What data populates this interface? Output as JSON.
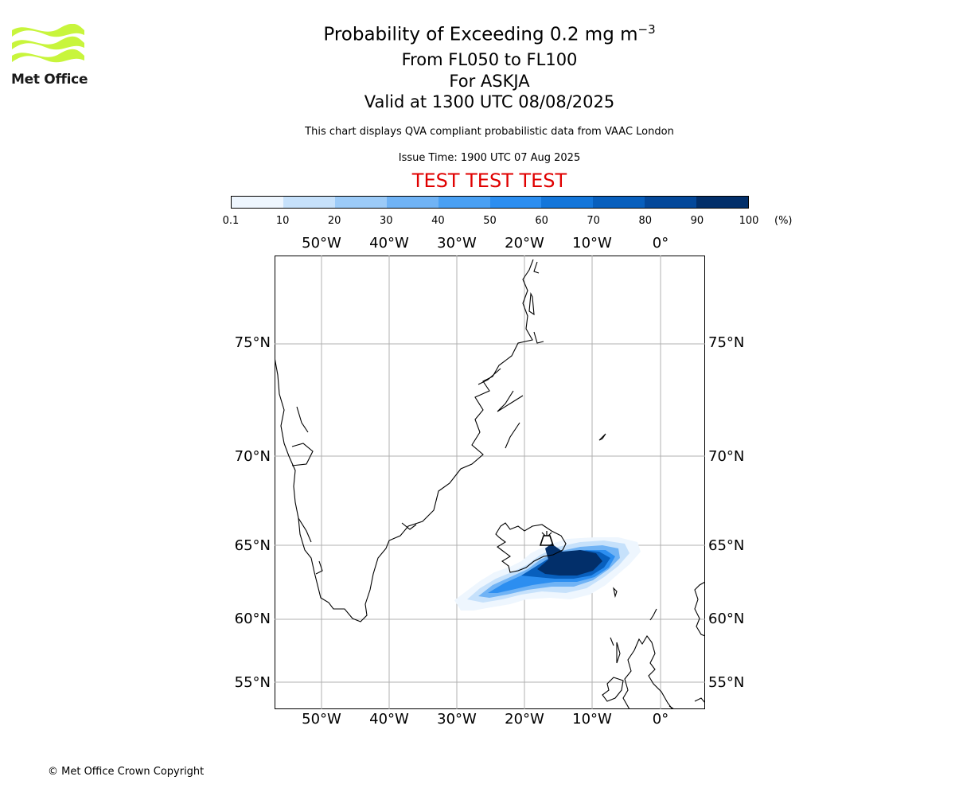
{
  "logo": {
    "text": "Met Office",
    "color": "#c8f53c"
  },
  "title": {
    "main": "Probability of Exceeding 0.2 mg m",
    "superscript": "−3",
    "range": "From FL050 to FL100",
    "volcano": "For ASKJA",
    "valid": "Valid at 1300 UTC 08/08/2025",
    "description": "This chart displays QVA compliant probabilistic data from VAAC London",
    "issue": "Issue Time: 1900 UTC 07 Aug 2025",
    "test_banner": "TEST TEST TEST",
    "test_color": "#e00000"
  },
  "colorbar": {
    "ticks": [
      "0.1",
      "10",
      "20",
      "30",
      "40",
      "50",
      "60",
      "70",
      "80",
      "90",
      "100"
    ],
    "unit": "(%)",
    "colors": [
      "#eef6fe",
      "#c6e1fb",
      "#9ccbf8",
      "#70b3f5",
      "#4aa0f3",
      "#2c8ef0",
      "#1476da",
      "#085fbd",
      "#04489a",
      "#022f6a"
    ]
  },
  "map": {
    "lon_labels": [
      "50°W",
      "40°W",
      "30°W",
      "20°W",
      "10°W",
      "0°"
    ],
    "lat_labels": [
      "75°N",
      "70°N",
      "65°N",
      "60°N",
      "55°N"
    ],
    "volcano_marker": "volcano-icon",
    "ash_plume_level": "up to 90-100% near Iceland"
  },
  "footer": {
    "copyright": "© Met Office Crown Copyright"
  }
}
